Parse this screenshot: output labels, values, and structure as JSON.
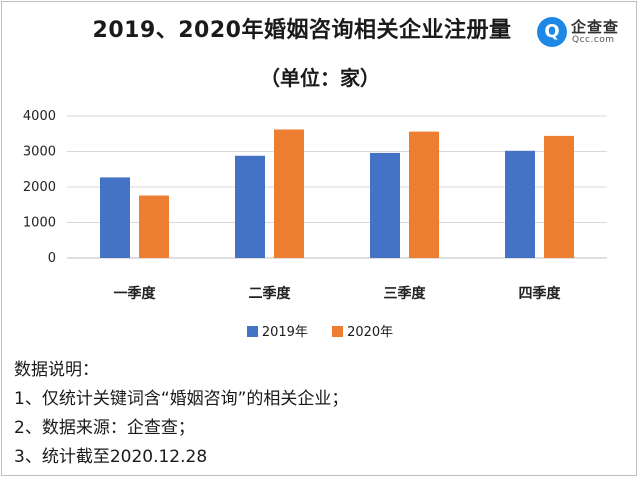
{
  "header": {
    "title": "2019、2020年婚姻咨询相关企业注册量",
    "subtitle": "（单位：家）"
  },
  "logo": {
    "badge": "Q",
    "name": "企查查",
    "sub": "Qcc.com",
    "color": "#1e88e5"
  },
  "notes": {
    "heading": "数据说明：",
    "items": [
      "1、仅统计关键词含“婚姻咨询”的相关企业；",
      "2、数据来源：企查查；",
      "3、统计截至2020.12.28"
    ]
  },
  "chart_data": {
    "type": "bar",
    "categories": [
      "一季度",
      "二季度",
      "三季度",
      "四季度"
    ],
    "series": [
      {
        "name": "2019年",
        "color": "#4472c4",
        "values": [
          2270,
          2880,
          2960,
          3020
        ]
      },
      {
        "name": "2020年",
        "color": "#ed7d31",
        "values": [
          1760,
          3620,
          3560,
          3440
        ]
      }
    ],
    "ylim": [
      0,
      4000
    ],
    "yticks": [
      0,
      1000,
      2000,
      3000,
      4000
    ],
    "grid": true,
    "legend": "bottom"
  }
}
